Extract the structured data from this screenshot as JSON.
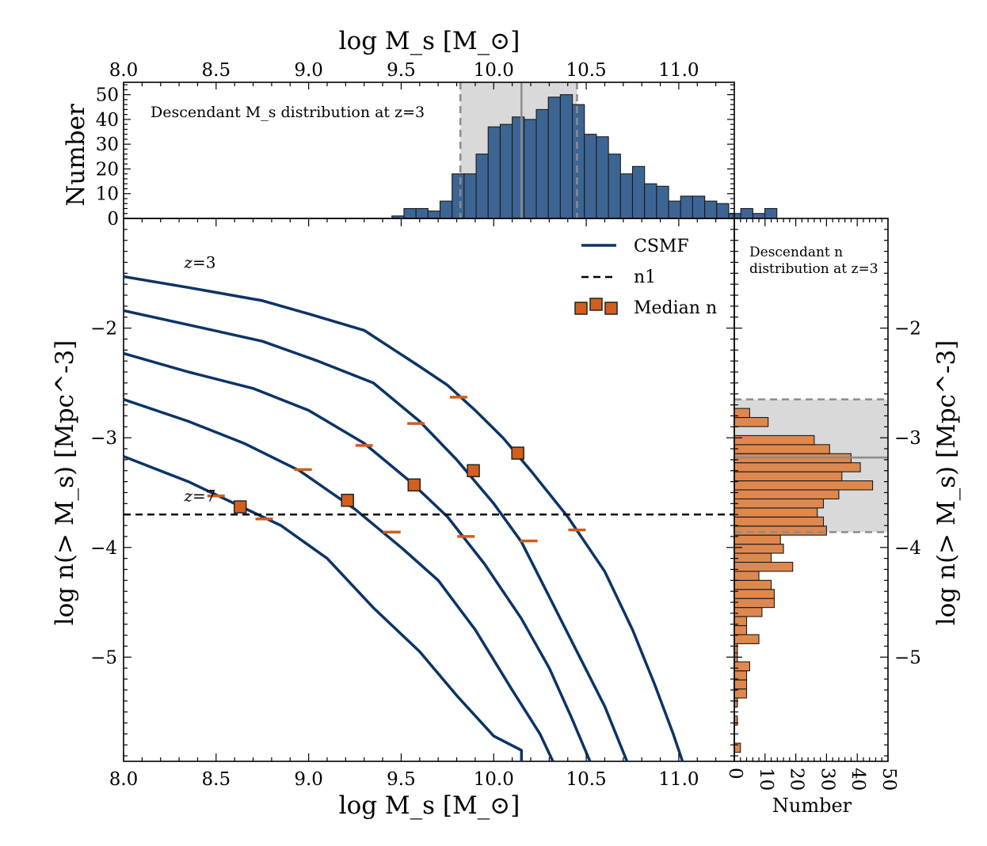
{
  "chart_data": [
    {
      "type": "line",
      "panel": "main",
      "xlabel": "log M_s [M_⊙]",
      "ylabel": "log n(> M_s) [Mpc^-3]",
      "xlim": [
        8.0,
        11.3
      ],
      "ylim": [
        -5.95,
        -1.0
      ],
      "xticks": [
        "8.0",
        "8.5",
        "9.0",
        "9.5",
        "10.0",
        "10.5",
        "11.0"
      ],
      "yticks": [
        "−2",
        "−3",
        "−4",
        "−5"
      ],
      "legend": {
        "placement": "top-right",
        "entries": [
          {
            "label": "CSMF",
            "style": "solid",
            "color": "#0b3466"
          },
          {
            "label": "n1",
            "style": "dashed",
            "color": "#000000"
          },
          {
            "label": "Median n",
            "style": "square-marker",
            "color": "#d35f1e"
          }
        ]
      },
      "annotations": [
        {
          "text": "z=3",
          "x": 8.25,
          "y": -1.45
        },
        {
          "text": "z=7",
          "x": 8.25,
          "y": -3.58
        }
      ],
      "n1_line": -3.7,
      "series": [
        {
          "name": "CSMF",
          "values": [
            [
              8.0,
              -1.53
            ],
            [
              8.35,
              -1.63
            ],
            [
              8.75,
              -1.75
            ],
            [
              9.0,
              -1.87
            ],
            [
              9.3,
              -2.02
            ],
            [
              9.6,
              -2.35
            ],
            [
              9.75,
              -2.52
            ],
            [
              9.9,
              -2.75
            ],
            [
              10.05,
              -3.0
            ],
            [
              10.2,
              -3.3
            ],
            [
              10.4,
              -3.72
            ],
            [
              10.6,
              -4.22
            ],
            [
              10.75,
              -4.75
            ],
            [
              10.87,
              -5.25
            ],
            [
              10.97,
              -5.7
            ],
            [
              11.02,
              -5.95
            ]
          ]
        },
        {
          "values": [
            [
              8.0,
              -1.84
            ],
            [
              8.35,
              -1.97
            ],
            [
              8.75,
              -2.12
            ],
            [
              9.05,
              -2.3
            ],
            [
              9.35,
              -2.5
            ],
            [
              9.6,
              -2.85
            ],
            [
              9.8,
              -3.2
            ],
            [
              10.0,
              -3.6
            ],
            [
              10.15,
              -3.95
            ],
            [
              10.3,
              -4.45
            ],
            [
              10.45,
              -4.95
            ],
            [
              10.6,
              -5.45
            ],
            [
              10.72,
              -5.95
            ]
          ]
        },
        {
          "values": [
            [
              8.0,
              -2.23
            ],
            [
              8.35,
              -2.4
            ],
            [
              8.7,
              -2.55
            ],
            [
              9.0,
              -2.75
            ],
            [
              9.3,
              -3.05
            ],
            [
              9.55,
              -3.4
            ],
            [
              9.75,
              -3.72
            ],
            [
              9.95,
              -4.15
            ],
            [
              10.15,
              -4.65
            ],
            [
              10.3,
              -5.1
            ],
            [
              10.42,
              -5.55
            ],
            [
              10.52,
              -5.95
            ]
          ]
        },
        {
          "values": [
            [
              8.0,
              -2.65
            ],
            [
              8.35,
              -2.85
            ],
            [
              8.65,
              -3.05
            ],
            [
              8.95,
              -3.3
            ],
            [
              9.25,
              -3.65
            ],
            [
              9.5,
              -4.0
            ],
            [
              9.7,
              -4.3
            ],
            [
              9.9,
              -4.75
            ],
            [
              10.1,
              -5.3
            ],
            [
              10.25,
              -5.7
            ],
            [
              10.32,
              -5.95
            ]
          ]
        },
        {
          "values": [
            [
              8.0,
              -3.17
            ],
            [
              8.35,
              -3.4
            ],
            [
              8.6,
              -3.6
            ],
            [
              8.85,
              -3.8
            ],
            [
              9.1,
              -4.1
            ],
            [
              9.35,
              -4.55
            ],
            [
              9.6,
              -4.95
            ],
            [
              9.8,
              -5.35
            ],
            [
              10.0,
              -5.72
            ],
            [
              10.15,
              -5.85
            ],
            [
              10.15,
              -5.95
            ]
          ]
        }
      ],
      "median_n": [
        [
          8.63,
          -3.63
        ],
        [
          9.21,
          -3.57
        ],
        [
          9.57,
          -3.43
        ],
        [
          9.89,
          -3.3
        ],
        [
          10.13,
          -3.14
        ]
      ],
      "n1_crossings": [
        [
          8.5,
          -3.53
        ],
        [
          8.76,
          -3.74
        ],
        [
          8.97,
          -3.29
        ],
        [
          9.3,
          -3.07
        ],
        [
          9.45,
          -3.86
        ],
        [
          9.58,
          -2.87
        ],
        [
          9.81,
          -2.63
        ],
        [
          9.85,
          -3.9
        ],
        [
          10.19,
          -3.94
        ],
        [
          10.45,
          -3.84
        ]
      ]
    },
    {
      "type": "bar",
      "panel": "top",
      "title": "Descendant M_s distribution at z=3",
      "xlabel": "log M_s [M_⊙]",
      "ylabel": "Number",
      "xlim": [
        8.0,
        11.3
      ],
      "ylim": [
        0,
        55
      ],
      "xticks": [
        "8.0",
        "8.5",
        "9.0",
        "9.5",
        "10.0",
        "10.5",
        "11.0"
      ],
      "yticks": [
        "0",
        "10",
        "20",
        "30",
        "40",
        "50"
      ],
      "bin_start": 9.45,
      "bin_width": 0.065,
      "values": [
        1,
        4,
        4,
        3,
        7,
        18,
        18,
        26,
        37,
        38,
        41,
        40,
        44,
        49,
        50,
        46,
        34,
        33,
        26,
        18,
        21,
        14,
        13,
        7,
        9,
        9,
        7,
        6,
        2,
        4,
        2,
        4
      ],
      "shaded_range": [
        9.82,
        10.45
      ],
      "median": 10.15
    },
    {
      "type": "bar",
      "panel": "right",
      "title": "Descendant n\ndistribution at z=3",
      "xlabel": "Number",
      "ylabel": "log n(> M_s) [Mpc^-3]",
      "xlim": [
        0,
        50
      ],
      "ylim": [
        -5.95,
        -1.0
      ],
      "xticks": [
        "0",
        "10",
        "20",
        "30",
        "40",
        "50"
      ],
      "yticks": [
        "−2",
        "−3",
        "−4",
        "−5"
      ],
      "bin_start": -5.95,
      "bin_width": 0.0825,
      "values": [
        0,
        2,
        0,
        0,
        1,
        0,
        1,
        4,
        4,
        4,
        5,
        1,
        1,
        8,
        4,
        4,
        9,
        13,
        13,
        12,
        8,
        19,
        12,
        16,
        15,
        30,
        29,
        27,
        29,
        34,
        45,
        35,
        41,
        38,
        31,
        26,
        0,
        11,
        5
      ],
      "shaded_range": [
        -3.86,
        -2.65
      ],
      "median": -3.18
    }
  ],
  "colors": {
    "csmf": "#0b3466",
    "n1": "#000000",
    "median_marker": "#d35f1e",
    "crossing_marker": "#cf5d1e",
    "top_hist": "#3d6594",
    "right_hist": "#df884e",
    "shade": "#d9d9d9",
    "shade_edge": "#8c8c8c"
  }
}
